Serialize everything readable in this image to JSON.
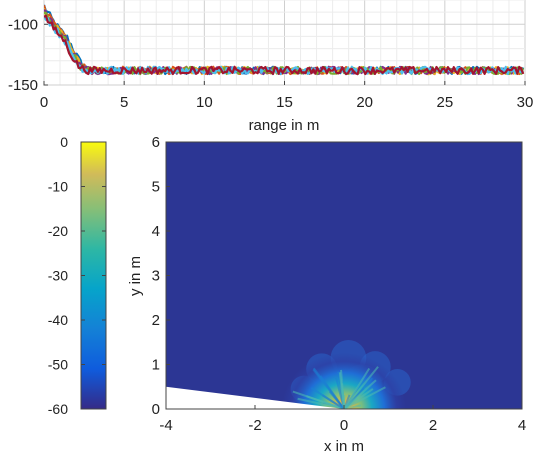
{
  "chart_data": [
    {
      "type": "line",
      "title": "",
      "xlabel": "range in m",
      "ylabel": "",
      "xlim": [
        0,
        30
      ],
      "ylim": [
        -150,
        -80
      ],
      "xticks": [
        "0",
        "5",
        "10",
        "15",
        "20",
        "25",
        "30"
      ],
      "yticks": [
        "-100",
        "-150"
      ],
      "grid": true,
      "series_colors": [
        "#0072bd",
        "#d95319",
        "#edb120",
        "#7e2f8e",
        "#77ac30",
        "#4dbeee",
        "#a2142f"
      ],
      "curve_profile": {
        "x": [
          0,
          0.3,
          0.7,
          1.0,
          1.5,
          2.0,
          2.3,
          2.6,
          3.0
        ],
        "y": [
          -85,
          -92,
          -100,
          -105,
          -112,
          -125,
          -132,
          -136,
          -138
        ]
      },
      "noise_floor": -138,
      "noise_amplitude": 3
    },
    {
      "type": "heatmap",
      "title": "",
      "xlabel": "x in m",
      "ylabel": "y in m",
      "xlim": [
        -4,
        4
      ],
      "ylim": [
        0,
        6
      ],
      "xticks": [
        "-4",
        "-2",
        "0",
        "2",
        "4"
      ],
      "yticks": [
        "0",
        "1",
        "2",
        "3",
        "4",
        "5",
        "6"
      ],
      "colorbar": {
        "range": [
          -60,
          0
        ],
        "ticks": [
          "0",
          "-10",
          "-20",
          "-30",
          "-40",
          "-50",
          "-60"
        ],
        "colormap": "parula"
      },
      "background_level": -60,
      "hotspot": {
        "x": 0,
        "y": 0,
        "peak": 0,
        "radius_m": 1.4
      },
      "blind_wedge": {
        "from_x": -4,
        "from_y": 0.5,
        "to_x": 0,
        "to_y": 0
      }
    }
  ]
}
